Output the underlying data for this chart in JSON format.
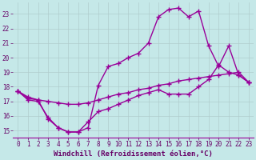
{
  "background_color": "#c5e8e8",
  "grid_color": "#b0cccc",
  "line_color": "#990099",
  "marker": "+",
  "markersize": 4,
  "linewidth": 1.0,
  "xlabel": "Windchill (Refroidissement éolien,°C)",
  "xlabel_color": "#660066",
  "xlabel_fontsize": 6.5,
  "tick_color": "#660066",
  "tick_fontsize": 5.5,
  "xlim": [
    -0.5,
    23.5
  ],
  "ylim": [
    14.5,
    23.8
  ],
  "yticks": [
    15,
    16,
    17,
    18,
    19,
    20,
    21,
    22,
    23
  ],
  "xticks": [
    0,
    1,
    2,
    3,
    4,
    5,
    6,
    7,
    8,
    9,
    10,
    11,
    12,
    13,
    14,
    15,
    16,
    17,
    18,
    19,
    20,
    21,
    22,
    23
  ],
  "lines": [
    {
      "x": [
        0,
        1,
        2,
        3,
        4,
        5,
        6,
        7,
        8,
        9,
        10,
        11,
        12,
        13,
        14,
        15,
        16,
        17,
        18,
        19,
        20,
        21,
        22,
        23
      ],
      "y": [
        17.7,
        17.3,
        17.1,
        15.8,
        15.2,
        14.9,
        14.9,
        15.2,
        18.1,
        19.4,
        19.6,
        20.0,
        20.3,
        21.0,
        22.8,
        23.3,
        23.4,
        22.8,
        23.2,
        20.8,
        19.4,
        20.8,
        18.8,
        18.3
      ]
    },
    {
      "x": [
        0,
        1,
        2,
        3,
        4,
        5,
        6,
        7,
        8,
        9,
        10,
        11,
        12,
        13,
        14,
        15,
        16,
        17,
        18,
        19,
        20,
        21,
        22,
        23
      ],
      "y": [
        17.7,
        17.1,
        17.0,
        15.9,
        15.2,
        14.9,
        14.9,
        15.6,
        16.3,
        16.5,
        16.8,
        17.1,
        17.4,
        17.6,
        17.8,
        17.5,
        17.5,
        17.5,
        18.0,
        18.5,
        19.5,
        19.0,
        18.8,
        18.3
      ]
    },
    {
      "x": [
        0,
        1,
        2,
        3,
        4,
        5,
        6,
        7,
        8,
        9,
        10,
        11,
        12,
        13,
        14,
        15,
        16,
        17,
        18,
        19,
        20,
        21,
        22,
        23
      ],
      "y": [
        17.7,
        17.2,
        17.1,
        17.0,
        16.9,
        16.8,
        16.8,
        16.9,
        17.1,
        17.3,
        17.5,
        17.6,
        17.8,
        17.9,
        18.1,
        18.2,
        18.4,
        18.5,
        18.6,
        18.7,
        18.8,
        18.9,
        19.0,
        18.3
      ]
    }
  ]
}
